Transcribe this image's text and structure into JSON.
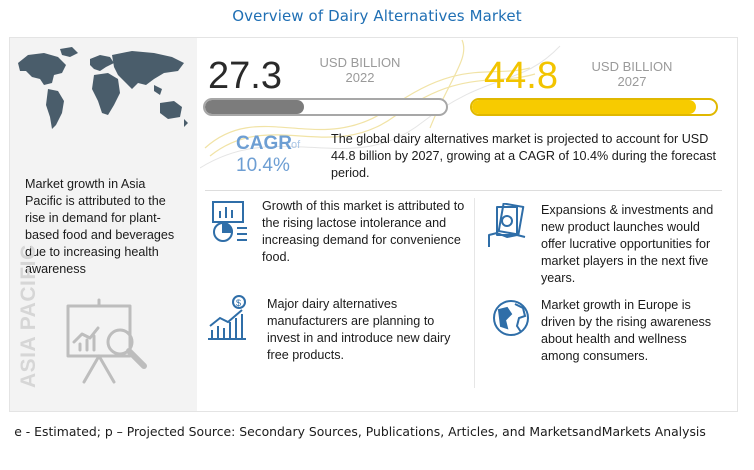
{
  "title": "Overview of Dairy Alternatives Market",
  "left_panel": {
    "text": "Market growth in Asia Pacific is attributed to the rise in demand for plant-based food and beverages due to increasing health awareness",
    "region_label": "ASIA PACIFIC"
  },
  "stats": {
    "value_2022": "27.3",
    "unit_2022": "USD BILLION",
    "year_2022": "2022",
    "value_2027": "44.8",
    "unit_2027": "USD BILLION",
    "year_2027": "2027",
    "bar_2022_fraction": 0.41,
    "bar_2027_fraction": 0.92
  },
  "cagr": {
    "label": "CAGR",
    "of": "of",
    "value": "10.4%",
    "description": "The global dairy alternatives market is projected to account for USD 44.8 billion by 2027, growing at a CAGR of 10.4% during the forecast period."
  },
  "findings": [
    {
      "text": "Growth of this market is attributed to the rising lactose intolerance and increasing demand for convenience food.",
      "icon": "analytics-icon"
    },
    {
      "text": "Expansions & investments and new product launches would offer lucrative opportunities for market players in the next five years.",
      "icon": "money-hand-icon"
    },
    {
      "text": "Major dairy alternatives manufacturers are planning to invest in and introduce new dairy free products.",
      "icon": "growth-chart-icon"
    },
    {
      "text": "Market growth in Europe is driven by the rising awareness about health and wellness among consumers.",
      "icon": "globe-icon"
    }
  ],
  "footer": "e - Estimated; p – Projected  Source: Secondary Sources, Publications, Articles, and MarketsandMarkets Analysis",
  "colors": {
    "title": "#1f6fb4",
    "highlight": "#f7cb00",
    "cagr": "#6d9ed3",
    "bar_2022": "#7c7c7c",
    "icon": "#2f6ea8"
  }
}
